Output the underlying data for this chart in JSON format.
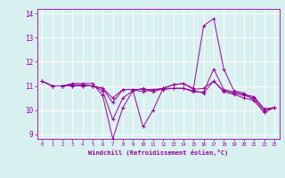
{
  "xlabel": "Windchill (Refroidissement éolien,°C)",
  "ylabel": "",
  "background_color": "#d8f0f0",
  "grid_color": "#ffffff",
  "line_color": "#990099",
  "xlim": [
    -0.5,
    23.5
  ],
  "ylim": [
    8.8,
    14.2
  ],
  "yticks": [
    9,
    10,
    11,
    12,
    13,
    14
  ],
  "xticks": [
    0,
    1,
    2,
    3,
    4,
    5,
    6,
    7,
    8,
    9,
    10,
    11,
    12,
    13,
    14,
    15,
    16,
    17,
    18,
    19,
    20,
    21,
    22,
    23
  ],
  "lines": [
    {
      "x": [
        0,
        1,
        2,
        3,
        4,
        5,
        6,
        7,
        8,
        9,
        10,
        11,
        12,
        13,
        14,
        15,
        16,
        17,
        18,
        19,
        20,
        21,
        22,
        23
      ],
      "y": [
        11.2,
        11.0,
        11.0,
        11.1,
        11.1,
        11.1,
        10.6,
        8.8,
        10.1,
        10.8,
        10.9,
        10.75,
        10.9,
        11.05,
        11.1,
        10.9,
        13.5,
        13.8,
        11.7,
        10.8,
        10.7,
        10.4,
        9.9,
        10.1
      ]
    },
    {
      "x": [
        0,
        1,
        2,
        3,
        4,
        5,
        6,
        7,
        8,
        9,
        10,
        11,
        12,
        13,
        14,
        15,
        16,
        17,
        18,
        19,
        20,
        21,
        22,
        23
      ],
      "y": [
        11.2,
        11.0,
        11.0,
        11.05,
        11.05,
        11.0,
        10.9,
        10.3,
        10.85,
        10.85,
        10.85,
        10.85,
        10.85,
        10.9,
        10.9,
        10.75,
        10.75,
        11.7,
        10.85,
        10.75,
        10.65,
        10.55,
        10.05,
        10.1
      ]
    },
    {
      "x": [
        0,
        1,
        2,
        3,
        4,
        5,
        6,
        7,
        8,
        9,
        10,
        11,
        12,
        13,
        14,
        15,
        16,
        17,
        18,
        19,
        20,
        21,
        22,
        23
      ],
      "y": [
        11.2,
        11.0,
        11.0,
        11.0,
        11.0,
        11.0,
        10.8,
        9.6,
        10.5,
        10.8,
        9.3,
        10.0,
        10.9,
        11.05,
        11.1,
        10.85,
        10.9,
        11.2,
        10.75,
        10.65,
        10.5,
        10.4,
        9.9,
        10.1
      ]
    },
    {
      "x": [
        0,
        1,
        2,
        3,
        4,
        5,
        6,
        7,
        8,
        9,
        10,
        11,
        12,
        13,
        14,
        15,
        16,
        17,
        18,
        19,
        20,
        21,
        22,
        23
      ],
      "y": [
        11.2,
        11.0,
        11.0,
        11.0,
        11.0,
        11.0,
        10.9,
        10.5,
        10.85,
        10.85,
        10.75,
        10.85,
        10.9,
        10.9,
        10.9,
        10.8,
        10.7,
        11.2,
        10.8,
        10.7,
        10.6,
        10.5,
        10.0,
        10.1
      ]
    }
  ]
}
